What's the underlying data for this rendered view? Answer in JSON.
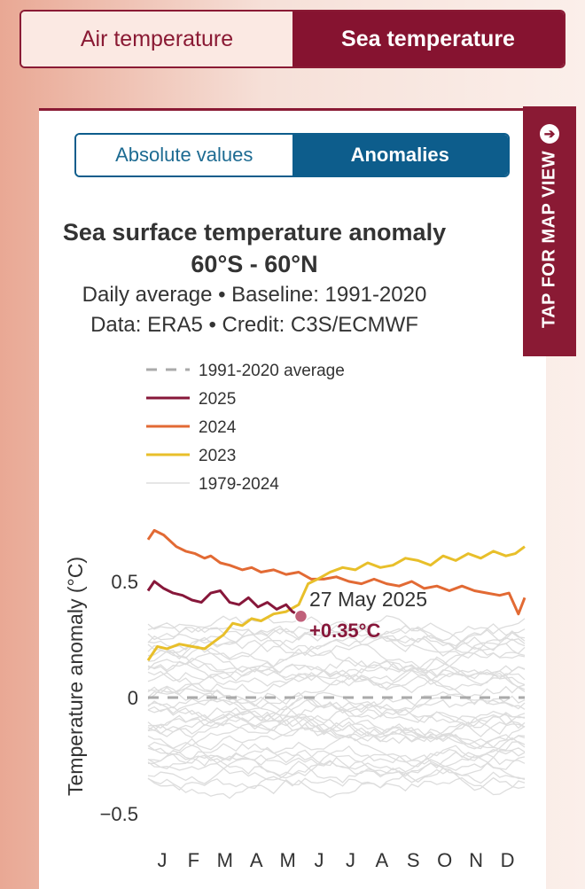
{
  "tabs": {
    "air": "Air temperature",
    "sea": "Sea temperature"
  },
  "view_toggle": {
    "absolute": "Absolute values",
    "anomalies": "Anomalies"
  },
  "map_tab": {
    "label": "TAP FOR MAP VIEW",
    "icon": "arrow-right-circle-icon"
  },
  "colors": {
    "brand": "#8a1a34",
    "toggle": "#0d5d8c",
    "c2025": "#87173a",
    "c2024": "#e26a34",
    "c2023": "#e8bf2a",
    "history": "#dddddd",
    "baseline": "#aaaaaa"
  },
  "chart_data": {
    "type": "line",
    "title": "Sea surface temperature anomaly",
    "subtitle_line1": "60°S - 60°N",
    "subtitle_line2": "Daily average • Baseline: 1991-2020",
    "subtitle_line3": "Data: ERA5 • Credit: C3S/ECMWF",
    "ylabel": "Temperature anomaly (°C)",
    "xlabel": "",
    "ylim": [
      -0.55,
      0.72
    ],
    "yticks": [
      {
        "value": 0.5,
        "label": "0.5"
      },
      {
        "value": 0,
        "label": "0"
      },
      {
        "value": -0.5,
        "label": "−0.5"
      }
    ],
    "months": [
      "J",
      "F",
      "M",
      "A",
      "M",
      "J",
      "J",
      "A",
      "S",
      "O",
      "N",
      "D"
    ],
    "legend": {
      "placement": "top",
      "entries": [
        {
          "key": "baseline",
          "label": "1991-2020 average"
        },
        {
          "key": "c2025",
          "label": "2025"
        },
        {
          "key": "c2024",
          "label": "2024"
        },
        {
          "key": "c2023",
          "label": "2023"
        },
        {
          "key": "history",
          "label": "1979-2024"
        }
      ]
    },
    "series": [
      {
        "name": "2024",
        "key": "c2024",
        "x": [
          0,
          0.2,
          0.5,
          0.9,
          1.2,
          1.5,
          1.8,
          2.0,
          2.3,
          2.6,
          3.0,
          3.3,
          3.6,
          4.0,
          4.4,
          4.8,
          5.2,
          5.6,
          6.0,
          6.4,
          6.8,
          7.2,
          7.6,
          8.0,
          8.4,
          8.8,
          9.2,
          9.6,
          10.0,
          10.4,
          10.8,
          11.2,
          11.5,
          11.8,
          12.0
        ],
        "y": [
          0.68,
          0.72,
          0.7,
          0.65,
          0.63,
          0.62,
          0.6,
          0.61,
          0.58,
          0.57,
          0.55,
          0.56,
          0.54,
          0.55,
          0.53,
          0.54,
          0.51,
          0.51,
          0.52,
          0.5,
          0.49,
          0.51,
          0.49,
          0.48,
          0.5,
          0.47,
          0.48,
          0.46,
          0.48,
          0.46,
          0.45,
          0.44,
          0.45,
          0.36,
          0.43
        ]
      },
      {
        "name": "2023",
        "key": "c2023",
        "x": [
          0,
          0.3,
          0.6,
          1.0,
          1.4,
          1.8,
          2.1,
          2.4,
          2.7,
          3.0,
          3.3,
          3.6,
          4.0,
          4.4,
          4.8,
          5.1,
          5.4,
          5.8,
          6.2,
          6.6,
          7.0,
          7.4,
          7.8,
          8.2,
          8.6,
          9.0,
          9.4,
          9.8,
          10.2,
          10.6,
          11.0,
          11.4,
          11.7,
          12.0
        ],
        "y": [
          0.16,
          0.22,
          0.21,
          0.23,
          0.22,
          0.21,
          0.24,
          0.27,
          0.32,
          0.31,
          0.34,
          0.33,
          0.36,
          0.37,
          0.4,
          0.49,
          0.51,
          0.54,
          0.56,
          0.55,
          0.58,
          0.56,
          0.57,
          0.6,
          0.59,
          0.57,
          0.61,
          0.59,
          0.62,
          0.6,
          0.63,
          0.61,
          0.62,
          0.65
        ]
      },
      {
        "name": "2025",
        "key": "c2025",
        "x": [
          0,
          0.2,
          0.5,
          0.8,
          1.1,
          1.4,
          1.7,
          2.0,
          2.3,
          2.6,
          2.9,
          3.2,
          3.5,
          3.8,
          4.1,
          4.4,
          4.6,
          4.87
        ],
        "y": [
          0.46,
          0.5,
          0.47,
          0.45,
          0.44,
          0.42,
          0.41,
          0.45,
          0.46,
          0.41,
          0.4,
          0.43,
          0.39,
          0.41,
          0.38,
          0.4,
          0.37,
          0.35
        ]
      }
    ],
    "annotation": {
      "date": "27 May 2025",
      "value": "+0.35°C",
      "x": 4.87,
      "y": 0.35
    },
    "baseline_value": 0
  }
}
